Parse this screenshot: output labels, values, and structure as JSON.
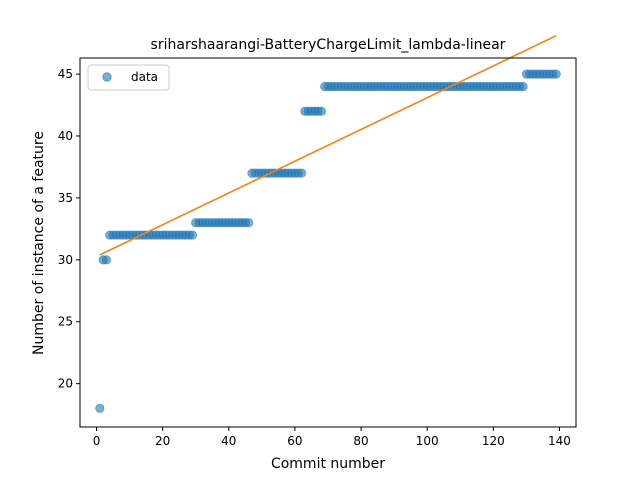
{
  "chart_data": {
    "type": "scatter",
    "title": "sriharshaarangi-BatteryChargeLimit_lambda-linear",
    "xlabel": "Commit number",
    "ylabel": "Number of instance of a feature",
    "xlim": [
      -5,
      145
    ],
    "ylim": [
      16.5,
      46.3
    ],
    "xticks": [
      0,
      20,
      40,
      60,
      80,
      100,
      120,
      140
    ],
    "yticks": [
      20,
      25,
      30,
      35,
      40,
      45
    ],
    "grid": false,
    "legend": {
      "position": "top-left",
      "entries": [
        "data"
      ]
    },
    "colors": {
      "scatter": "#1f77b4",
      "fit": "#ff7f0e"
    },
    "series": [
      {
        "name": "data",
        "kind": "scatter",
        "segments": [
          {
            "x_from": 1,
            "x_to": 1,
            "y": 18
          },
          {
            "x_from": 2,
            "x_to": 3,
            "y": 30
          },
          {
            "x_from": 4,
            "x_to": 29,
            "y": 32
          },
          {
            "x_from": 30,
            "x_to": 46,
            "y": 33
          },
          {
            "x_from": 47,
            "x_to": 62,
            "y": 37
          },
          {
            "x_from": 63,
            "x_to": 68,
            "y": 42
          },
          {
            "x_from": 69,
            "x_to": 129,
            "y": 44
          },
          {
            "x_from": 130,
            "x_to": 139,
            "y": 45
          }
        ]
      },
      {
        "kind": "line",
        "x": [
          1,
          139
        ],
        "y": [
          30.4,
          48.1
        ]
      }
    ]
  }
}
